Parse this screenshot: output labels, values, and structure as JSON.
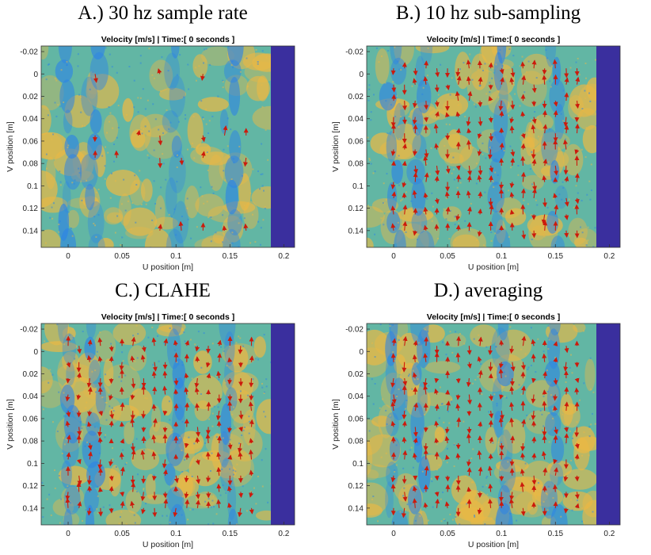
{
  "colors": {
    "plot_bg": "#62b6a4",
    "blue": "#2c83e6",
    "yellow": "#e9b845",
    "pad": "#3a2f9e",
    "arrow": "#cc1a0c"
  },
  "chart_data": [
    {
      "type": "heatmap",
      "caption": "A.) 30 hz sample rate",
      "title": "Velocity [m/s] | Time:[ 0 seconds ]",
      "xlabel": "U position [m]",
      "ylabel": "V position [m]",
      "xticks": [
        "0",
        "0.05",
        "0.1",
        "0.15",
        "0.2"
      ],
      "yticks": [
        "-0.02",
        "0",
        "0.02",
        "0.04",
        "0.06",
        "0.08",
        "0.1",
        "0.12",
        "0.14"
      ],
      "xlim": [
        -0.025,
        0.21
      ],
      "ylim": [
        -0.025,
        0.155
      ],
      "y_reversed": true,
      "vector_density": "sparse"
    },
    {
      "type": "heatmap",
      "caption": "B.) 10 hz sub-sampling",
      "title": "Velocity [m/s] | Time:[ 0 seconds ]",
      "xlabel": "U position [m]",
      "ylabel": "V position [m]",
      "xticks": [
        "0",
        "0.05",
        "0.1",
        "0.15",
        "0.2"
      ],
      "yticks": [
        "-0.02",
        "0",
        "0.02",
        "0.04",
        "0.06",
        "0.08",
        "0.1",
        "0.12",
        "0.14"
      ],
      "xlim": [
        -0.025,
        0.21
      ],
      "ylim": [
        -0.025,
        0.155
      ],
      "y_reversed": true,
      "vector_density": "dense"
    },
    {
      "type": "heatmap",
      "caption": "C.) CLAHE",
      "title": "Velocity [m/s] | Time:[ 0 seconds ]",
      "xlabel": "U position [m]",
      "ylabel": "V position [m]",
      "xticks": [
        "0",
        "0.05",
        "0.1",
        "0.15",
        "0.2"
      ],
      "yticks": [
        "-0.02",
        "0",
        "0.02",
        "0.04",
        "0.06",
        "0.08",
        "0.1",
        "0.12",
        "0.14"
      ],
      "xlim": [
        -0.025,
        0.21
      ],
      "ylim": [
        -0.025,
        0.155
      ],
      "y_reversed": true,
      "vector_density": "dense"
    },
    {
      "type": "heatmap",
      "caption": "D.) averaging",
      "title": "Velocity [m/s] | Time:[ 0 seconds ]",
      "xlabel": "U position [m]",
      "ylabel": "V position [m]",
      "xticks": [
        "0",
        "0.05",
        "0.1",
        "0.15",
        "0.2"
      ],
      "yticks": [
        "-0.02",
        "0",
        "0.02",
        "0.04",
        "0.06",
        "0.08",
        "0.1",
        "0.12",
        "0.14"
      ],
      "xlim": [
        -0.025,
        0.21
      ],
      "ylim": [
        -0.025,
        0.155
      ],
      "y_reversed": true,
      "vector_density": "dense"
    }
  ]
}
